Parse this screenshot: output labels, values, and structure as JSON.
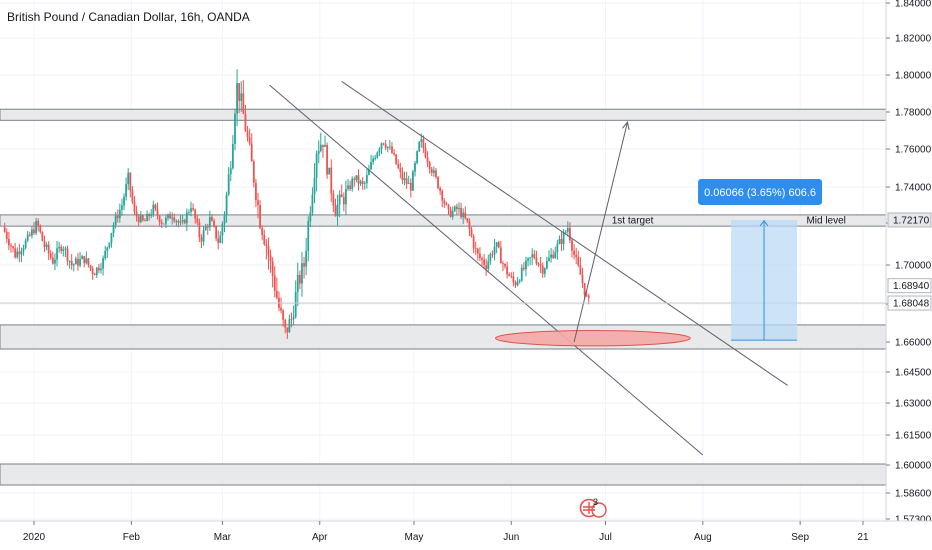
{
  "chart_data": {
    "type": "candlestick",
    "title": "British Pound / Canadian Dollar, 16h, OANDA",
    "ylim": [
      1.574,
      1.842
    ],
    "price_ticks": [
      1.84,
      1.82,
      1.8,
      1.78,
      1.76,
      1.74,
      1.72,
      1.7,
      1.68,
      1.66,
      1.645,
      1.63,
      1.615,
      1.6,
      1.586,
      1.573
    ],
    "price_tick_labels": [
      "1.84000",
      "1.82000",
      "1.80000",
      "1.78000",
      "1.76000",
      "1.74000",
      "1.72000",
      "1.70000",
      "1.68000",
      "1.66000",
      "1.64500",
      "1.63000",
      "1.61500",
      "1.60000",
      "1.58600",
      "1.57300"
    ],
    "time_ticks": [
      {
        "label": "2020",
        "day": 0
      },
      {
        "label": "Feb",
        "day": 31
      },
      {
        "label": "Mar",
        "day": 60
      },
      {
        "label": "Apr",
        "day": 91
      },
      {
        "label": "May",
        "day": 121
      },
      {
        "label": "Jun",
        "day": 152
      },
      {
        "label": "Jul",
        "day": 182
      },
      {
        "label": "Aug",
        "day": 213
      },
      {
        "label": "Sep",
        "day": 244
      },
      {
        "label": "21",
        "day": 264
      }
    ],
    "price_path": [
      {
        "day": -10,
        "price": 1.718
      },
      {
        "day": -6,
        "price": 1.705
      },
      {
        "day": -2,
        "price": 1.712
      },
      {
        "day": 1,
        "price": 1.72
      },
      {
        "day": 3,
        "price": 1.71
      },
      {
        "day": 6,
        "price": 1.702
      },
      {
        "day": 9,
        "price": 1.71
      },
      {
        "day": 12,
        "price": 1.7
      },
      {
        "day": 16,
        "price": 1.703
      },
      {
        "day": 19,
        "price": 1.696
      },
      {
        "day": 22,
        "price": 1.702
      },
      {
        "day": 25,
        "price": 1.718
      },
      {
        "day": 28,
        "price": 1.73
      },
      {
        "day": 30,
        "price": 1.745
      },
      {
        "day": 32,
        "price": 1.725
      },
      {
        "day": 35,
        "price": 1.72
      },
      {
        "day": 38,
        "price": 1.728
      },
      {
        "day": 41,
        "price": 1.72
      },
      {
        "day": 44,
        "price": 1.725
      },
      {
        "day": 47,
        "price": 1.718
      },
      {
        "day": 50,
        "price": 1.73
      },
      {
        "day": 53,
        "price": 1.712
      },
      {
        "day": 56,
        "price": 1.722
      },
      {
        "day": 59,
        "price": 1.71
      },
      {
        "day": 61,
        "price": 1.73
      },
      {
        "day": 63,
        "price": 1.76
      },
      {
        "day": 64.5,
        "price": 1.795
      },
      {
        "day": 66,
        "price": 1.785
      },
      {
        "day": 68,
        "price": 1.765
      },
      {
        "day": 70,
        "price": 1.745
      },
      {
        "day": 72,
        "price": 1.722
      },
      {
        "day": 74,
        "price": 1.71
      },
      {
        "day": 76,
        "price": 1.695
      },
      {
        "day": 78,
        "price": 1.678
      },
      {
        "day": 80,
        "price": 1.665
      },
      {
        "day": 82,
        "price": 1.672
      },
      {
        "day": 84,
        "price": 1.69
      },
      {
        "day": 86,
        "price": 1.7
      },
      {
        "day": 88,
        "price": 1.73
      },
      {
        "day": 90,
        "price": 1.76
      },
      {
        "day": 92,
        "price": 1.765
      },
      {
        "day": 94,
        "price": 1.745
      },
      {
        "day": 96,
        "price": 1.728
      },
      {
        "day": 99,
        "price": 1.735
      },
      {
        "day": 102,
        "price": 1.745
      },
      {
        "day": 105,
        "price": 1.74
      },
      {
        "day": 108,
        "price": 1.755
      },
      {
        "day": 111,
        "price": 1.765
      },
      {
        "day": 114,
        "price": 1.758
      },
      {
        "day": 117,
        "price": 1.745
      },
      {
        "day": 120,
        "price": 1.74
      },
      {
        "day": 123,
        "price": 1.765
      },
      {
        "day": 126,
        "price": 1.752
      },
      {
        "day": 129,
        "price": 1.74
      },
      {
        "day": 132,
        "price": 1.725
      },
      {
        "day": 135,
        "price": 1.728
      },
      {
        "day": 138,
        "price": 1.72
      },
      {
        "day": 141,
        "price": 1.705
      },
      {
        "day": 144,
        "price": 1.7
      },
      {
        "day": 147,
        "price": 1.71
      },
      {
        "day": 150,
        "price": 1.698
      },
      {
        "day": 153,
        "price": 1.69
      },
      {
        "day": 156,
        "price": 1.698
      },
      {
        "day": 159,
        "price": 1.705
      },
      {
        "day": 162,
        "price": 1.698
      },
      {
        "day": 165,
        "price": 1.705
      },
      {
        "day": 168,
        "price": 1.712
      },
      {
        "day": 170,
        "price": 1.718
      },
      {
        "day": 172,
        "price": 1.705
      },
      {
        "day": 174,
        "price": 1.695
      },
      {
        "day": 176,
        "price": 1.683
      },
      {
        "day": 177,
        "price": 1.68
      }
    ],
    "zones": [
      {
        "low": 1.7755,
        "high": 1.7815
      },
      {
        "low": 1.7185,
        "high": 1.7245
      },
      {
        "low": 1.6565,
        "high": 1.669
      },
      {
        "low": 1.59,
        "high": 1.6005
      }
    ],
    "channel_lines": [
      {
        "from": {
          "day": 75,
          "price": 1.7945
        },
        "to": {
          "day": 213,
          "price": 1.605
        }
      },
      {
        "from": {
          "day": 98,
          "price": 1.7965
        },
        "to": {
          "day": 240,
          "price": 1.6385
        }
      }
    ],
    "projection_arrow": {
      "from": {
        "day": 172,
        "price": 1.66
      },
      "to": {
        "day": 189,
        "price": 1.7745
      }
    },
    "ellipse": {
      "day": 178,
      "price": 1.662,
      "day_radius": 10,
      "price_radius": 0.004
    },
    "measure": {
      "from_day": 222,
      "to_day": 243,
      "low": 1.661,
      "high": 1.7217,
      "label": "0.06066 (3.65%) 606.6"
    },
    "annotations": [
      {
        "text": "1st target",
        "day": 184,
        "price": 1.7215
      },
      {
        "text": "Mid level",
        "day": 246,
        "price": 1.7215
      }
    ],
    "price_labels": [
      {
        "text": "1.72170",
        "price": 1.7217,
        "bg": "#e6e7ea",
        "fg": "#131722"
      },
      {
        "text": "1.68940",
        "price": 1.6894,
        "bg": "#ffffff",
        "fg": "#131722"
      },
      {
        "text": "1.68048",
        "price": 1.6805,
        "bg": "#ffffff",
        "fg": "#131722"
      }
    ],
    "current_price": 1.6805,
    "colors": {
      "up": "#26a69a",
      "down": "#ef5350",
      "zone_fill": "#e8e9eb",
      "zone_stroke": "#7b7f8a",
      "line": "#5d606b",
      "measure_fill": "#bbd9f5",
      "measure_line": "#2f8ded",
      "measure_label_bg": "#2f8ded",
      "ellipse_fill": "#f5a9a7",
      "ellipse_stroke": "#e0413d",
      "grid": "#f0f3fa"
    }
  }
}
